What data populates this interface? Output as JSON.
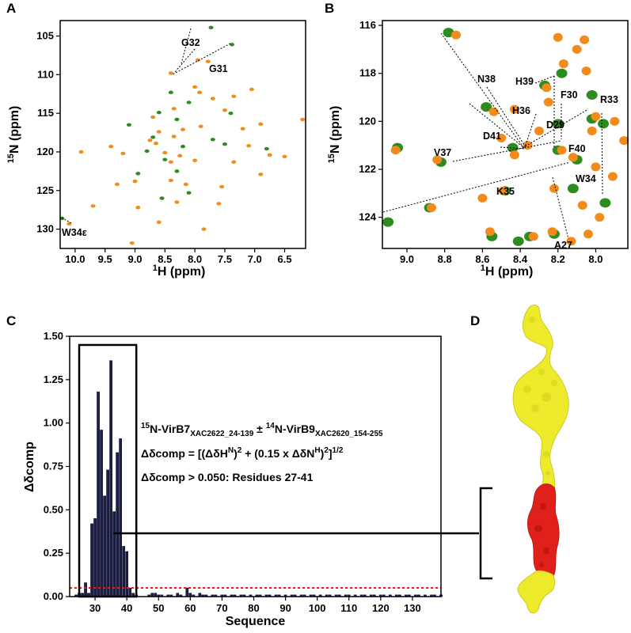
{
  "panels": {
    "A": {
      "label": "A",
      "xlabel_sup": "1",
      "xlabel": "H (ppm)",
      "ylabel_sup": "15",
      "ylabel": "N (ppm)",
      "xticks": [
        "10.0",
        "9.5",
        "9.0",
        "8.5",
        "8.0",
        "7.5",
        "7.0",
        "6.5"
      ],
      "yticks": [
        "105",
        "110",
        "115",
        "120",
        "125",
        "130"
      ],
      "peak_labels": [
        "G32",
        "G31",
        "W34ε"
      ]
    },
    "B": {
      "label": "B",
      "xlabel_sup": "1",
      "xlabel": "H (ppm)",
      "ylabel_sup": "15",
      "ylabel": "N (ppm)",
      "xticks": [
        "9.0",
        "8.8",
        "8.6",
        "8.4",
        "8.2",
        "8.0"
      ],
      "yticks": [
        "116",
        "118",
        "120",
        "122",
        "124"
      ],
      "peak_labels": [
        "N38",
        "H39",
        "F30",
        "R33",
        "H36",
        "D29",
        "D41",
        "F40",
        "V37",
        "W34",
        "K35",
        "A27"
      ]
    },
    "C": {
      "label": "C",
      "annotation_line1": "15N-VirB7XAC2622_24-139 ± 14N-VirB9XAC2620_154-255",
      "annotation_line2": "Δδcomp = [(ΔδHN)2 + (0.15 x ΔδNH)2]1/2",
      "annotation_line3": "Δδcomp > 0.050: Residues 27-41"
    },
    "D": {
      "label": "D"
    }
  },
  "colors": {
    "free_peaks": "#2e8b1e",
    "bound_peaks": "#f28a1c",
    "bars": "#1b1f4a",
    "threshold": "#e0201a",
    "surface_unperturbed": "#ecea2a",
    "surface_perturbed": "#e0201a"
  },
  "chart_data": {
    "type": "bar",
    "xlabel": "Sequence",
    "ylabel": "Δδcomp",
    "xlim": [
      22,
      139
    ],
    "ylim": [
      0,
      1.5
    ],
    "xticks": [
      30,
      40,
      50,
      60,
      70,
      80,
      90,
      100,
      110,
      120,
      130
    ],
    "yticks": [
      0.0,
      0.25,
      0.5,
      0.75,
      1.0,
      1.25,
      1.5
    ],
    "ytick_labels": [
      "0.00",
      "0.25",
      "0.50",
      "0.75",
      "1.00",
      "1.25",
      "1.50"
    ],
    "threshold": 0.05,
    "highlight_box": [
      25,
      43
    ],
    "x": [
      24,
      25,
      26,
      27,
      28,
      29,
      30,
      31,
      32,
      33,
      34,
      35,
      36,
      37,
      38,
      39,
      40,
      41,
      42,
      43,
      44,
      45,
      46,
      47,
      48,
      49,
      50,
      51,
      52,
      53,
      54,
      55,
      56,
      57,
      58,
      59,
      60,
      61,
      62,
      63,
      64,
      65,
      66,
      67,
      68,
      69,
      70,
      71,
      72,
      73,
      74,
      75,
      76,
      77,
      78,
      79,
      80,
      81,
      82,
      83,
      84,
      85,
      86,
      87,
      88,
      89,
      90,
      91,
      92,
      93,
      94,
      95,
      96,
      97,
      98,
      99,
      100,
      101,
      102,
      103,
      104,
      105,
      106,
      107,
      108,
      109,
      110,
      111,
      112,
      113,
      114,
      115,
      116,
      117,
      118,
      119,
      120,
      121,
      122,
      123,
      124,
      125,
      126,
      127,
      128,
      129,
      130,
      131,
      132,
      133,
      134,
      135,
      136,
      137,
      138,
      139
    ],
    "values": [
      0.01,
      0.02,
      0.02,
      0.08,
      0.02,
      0.42,
      0.45,
      1.18,
      0.96,
      0.58,
      0.73,
      1.36,
      0.49,
      0.83,
      0.91,
      0.29,
      0.26,
      0.05,
      0.02,
      0.01,
      0.0,
      0.0,
      0.0,
      0.01,
      0.02,
      0.02,
      0.01,
      0.01,
      0.0,
      0.01,
      0.01,
      0.0,
      0.02,
      0.01,
      0.0,
      0.05,
      0.02,
      0.01,
      0.0,
      0.02,
      0.01,
      0.01,
      0.0,
      0.01,
      0.01,
      0.0,
      0.01,
      0.01,
      0.0,
      0.01,
      0.01,
      0.0,
      0.01,
      0.01,
      0.0,
      0.01,
      0.0,
      0.01,
      0.01,
      0.0,
      0.01,
      0.01,
      0.0,
      0.01,
      0.01,
      0.0,
      0.01,
      0.0,
      0.01,
      0.01,
      0.0,
      0.01,
      0.01,
      0.0,
      0.01,
      0.01,
      0.0,
      0.01,
      0.0,
      0.01,
      0.01,
      0.0,
      0.01,
      0.01,
      0.0,
      0.01,
      0.01,
      0.0,
      0.01,
      0.0,
      0.01,
      0.01,
      0.0,
      0.01,
      0.01,
      0.0,
      0.01,
      0.01,
      0.0,
      0.01,
      0.0,
      0.01,
      0.01,
      0.0,
      0.01,
      0.01,
      0.0,
      0.01,
      0.01,
      0.0,
      0.01,
      0.0,
      0.01,
      0.01,
      0.0,
      0.01
    ]
  },
  "spectra": {
    "A": {
      "xlim": [
        10.25,
        6.15
      ],
      "ylim": [
        103,
        132.5
      ],
      "peaks_free": [
        [
          7.73,
          103.9
        ],
        [
          7.38,
          106.1
        ],
        [
          10.22,
          128.6
        ],
        [
          8.4,
          112.3
        ],
        [
          8.1,
          113.6
        ],
        [
          8.6,
          114.9
        ],
        [
          8.3,
          115.8
        ],
        [
          8.7,
          118.1
        ],
        [
          8.8,
          119.9
        ],
        [
          8.5,
          121.0
        ],
        [
          8.3,
          122.5
        ],
        [
          7.7,
          118.4
        ],
        [
          7.5,
          119.0
        ],
        [
          9.1,
          116.5
        ],
        [
          8.95,
          122.8
        ],
        [
          8.1,
          125.3
        ],
        [
          7.4,
          115.0
        ],
        [
          6.8,
          119.6
        ],
        [
          8.2,
          119.3
        ],
        [
          8.55,
          126.0
        ]
      ],
      "peaks_bound": [
        [
          7.78,
          108.3
        ],
        [
          7.95,
          108.1
        ],
        [
          8.4,
          109.8
        ],
        [
          10.1,
          129.3
        ],
        [
          8.95,
          127.2
        ],
        [
          9.05,
          131.8
        ],
        [
          7.85,
          130.0
        ],
        [
          8.0,
          111.6
        ],
        [
          7.92,
          112.3
        ],
        [
          7.7,
          113.1
        ],
        [
          8.35,
          114.4
        ],
        [
          7.5,
          114.6
        ],
        [
          8.7,
          115.5
        ],
        [
          8.2,
          117.1
        ],
        [
          8.6,
          117.4
        ],
        [
          7.9,
          116.7
        ],
        [
          8.35,
          118.0
        ],
        [
          8.65,
          118.9
        ],
        [
          8.5,
          120.1
        ],
        [
          8.25,
          120.5
        ],
        [
          8.0,
          121.1
        ],
        [
          8.4,
          121.3
        ],
        [
          9.2,
          120.2
        ],
        [
          9.4,
          119.3
        ],
        [
          9.9,
          120.0
        ],
        [
          9.7,
          127.0
        ],
        [
          9.3,
          124.2
        ],
        [
          9.0,
          123.8
        ],
        [
          8.15,
          124.2
        ],
        [
          8.4,
          123.7
        ],
        [
          7.55,
          124.5
        ],
        [
          7.35,
          121.3
        ],
        [
          7.1,
          119.2
        ],
        [
          6.9,
          122.9
        ],
        [
          6.75,
          120.4
        ],
        [
          6.5,
          120.6
        ],
        [
          6.2,
          115.8
        ],
        [
          6.9,
          116.4
        ],
        [
          7.2,
          117.0
        ],
        [
          7.6,
          126.7
        ],
        [
          8.3,
          126.5
        ],
        [
          8.6,
          129.1
        ],
        [
          8.75,
          118.5
        ],
        [
          7.05,
          111.9
        ],
        [
          7.35,
          112.8
        ]
      ]
    },
    "B": {
      "xlim": [
        9.13,
        7.83
      ],
      "ylim": [
        115.8,
        125.3
      ],
      "peaks_free": [
        [
          8.78,
          116.3
        ],
        [
          8.58,
          119.4
        ],
        [
          8.44,
          121.1
        ],
        [
          8.27,
          118.5
        ],
        [
          8.18,
          118.0
        ],
        [
          8.02,
          119.9
        ],
        [
          7.96,
          120.1
        ],
        [
          8.1,
          121.6
        ],
        [
          7.95,
          123.4
        ],
        [
          8.22,
          124.7
        ],
        [
          8.55,
          124.8
        ],
        [
          8.35,
          124.8
        ],
        [
          9.1,
          124.2
        ],
        [
          8.88,
          123.6
        ],
        [
          9.05,
          121.1
        ],
        [
          8.82,
          121.7
        ],
        [
          8.2,
          121.2
        ],
        [
          8.48,
          122.9
        ],
        [
          8.12,
          122.8
        ],
        [
          8.2,
          120.1
        ],
        [
          8.02,
          118.9
        ],
        [
          8.41,
          125.0
        ]
      ],
      "peaks_bound": [
        [
          8.74,
          116.4
        ],
        [
          8.2,
          116.5
        ],
        [
          8.06,
          116.6
        ],
        [
          8.1,
          117.0
        ],
        [
          8.17,
          117.6
        ],
        [
          8.05,
          117.9
        ],
        [
          8.26,
          118.6
        ],
        [
          8.54,
          119.6
        ],
        [
          8.43,
          119.5
        ],
        [
          8.25,
          119.2
        ],
        [
          8.0,
          119.8
        ],
        [
          7.9,
          120.0
        ],
        [
          8.02,
          120.4
        ],
        [
          8.36,
          121.0
        ],
        [
          8.43,
          121.4
        ],
        [
          8.18,
          121.2
        ],
        [
          8.12,
          121.5
        ],
        [
          8.5,
          120.7
        ],
        [
          8.3,
          120.4
        ],
        [
          8.0,
          121.9
        ],
        [
          7.91,
          122.3
        ],
        [
          8.49,
          122.9
        ],
        [
          8.07,
          123.5
        ],
        [
          7.98,
          124.0
        ],
        [
          8.23,
          124.6
        ],
        [
          8.56,
          124.6
        ],
        [
          8.33,
          124.8
        ],
        [
          8.87,
          123.6
        ],
        [
          9.06,
          121.2
        ],
        [
          8.84,
          121.6
        ],
        [
          8.22,
          122.8
        ],
        [
          8.6,
          123.2
        ],
        [
          8.04,
          124.7
        ],
        [
          8.13,
          125.0
        ],
        [
          7.85,
          120.8
        ]
      ]
    }
  }
}
